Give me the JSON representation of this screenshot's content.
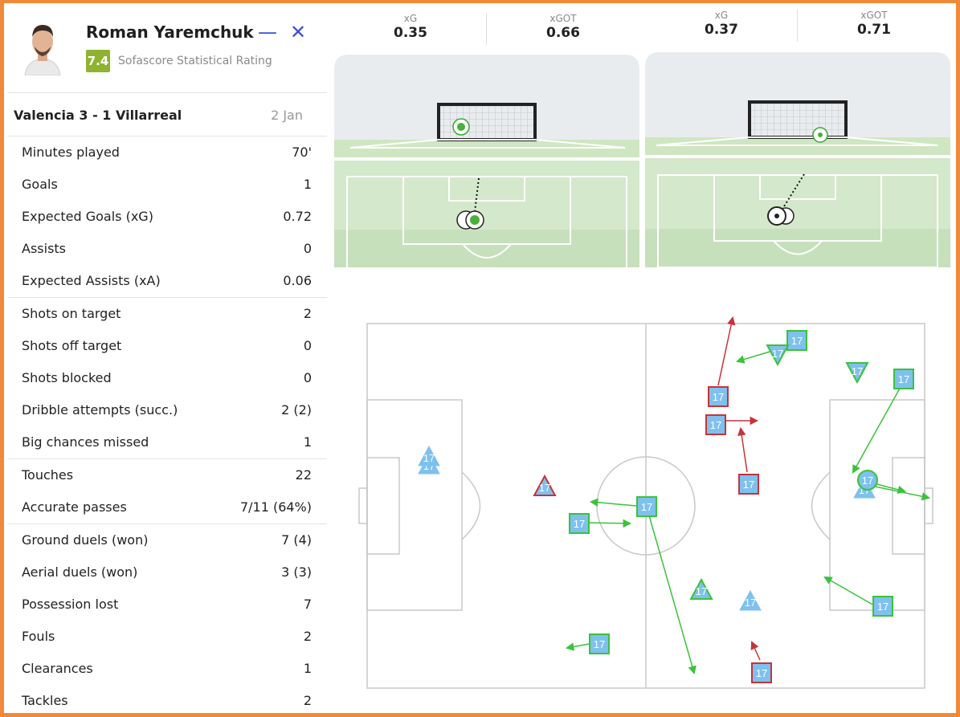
{
  "player": {
    "name": "Roman Yaremchuk",
    "rating": "7.4",
    "rating_label": "Sofascore Statistical Rating"
  },
  "controls": {
    "minimize": "—",
    "close": "✕"
  },
  "match": {
    "title": "Valencia 3 - 1 Villarreal",
    "date": "2 Jan"
  },
  "stat_groups": [
    [
      {
        "label": "Minutes played",
        "value": "70'"
      },
      {
        "label": "Goals",
        "value": "1"
      },
      {
        "label": "Expected Goals (xG)",
        "value": "0.72"
      },
      {
        "label": "Assists",
        "value": "0"
      },
      {
        "label": "Expected Assists (xA)",
        "value": "0.06"
      }
    ],
    [
      {
        "label": "Shots on target",
        "value": "2"
      },
      {
        "label": "Shots off target",
        "value": "0"
      },
      {
        "label": "Shots blocked",
        "value": "0"
      },
      {
        "label": "Dribble attempts (succ.)",
        "value": "2 (2)"
      },
      {
        "label": "Big chances missed",
        "value": "1"
      }
    ],
    [
      {
        "label": "Touches",
        "value": "22"
      },
      {
        "label": "Accurate passes",
        "value": "7/11 (64%)"
      }
    ],
    [
      {
        "label": "Ground duels (won)",
        "value": "7 (4)"
      },
      {
        "label": "Aerial duels (won)",
        "value": "3 (3)"
      },
      {
        "label": "Possession lost",
        "value": "7"
      },
      {
        "label": "Fouls",
        "value": "2"
      },
      {
        "label": "Clearances",
        "value": "1"
      },
      {
        "label": "Tackles",
        "value": "2"
      }
    ]
  ],
  "shots": [
    {
      "xg_label": "xG",
      "xg": "0.35",
      "xgot_label": "xGOT",
      "xgot": "0.66"
    },
    {
      "xg_label": "xG",
      "xg": "0.37",
      "xgot_label": "xGOT",
      "xgot": "0.71"
    }
  ],
  "pitch": {
    "marker_label": "17",
    "colors": {
      "success": "#3bc23b",
      "fail": "#c8323a",
      "marker_fill": "#7ec1ee",
      "line": "#c8c8c8"
    }
  }
}
